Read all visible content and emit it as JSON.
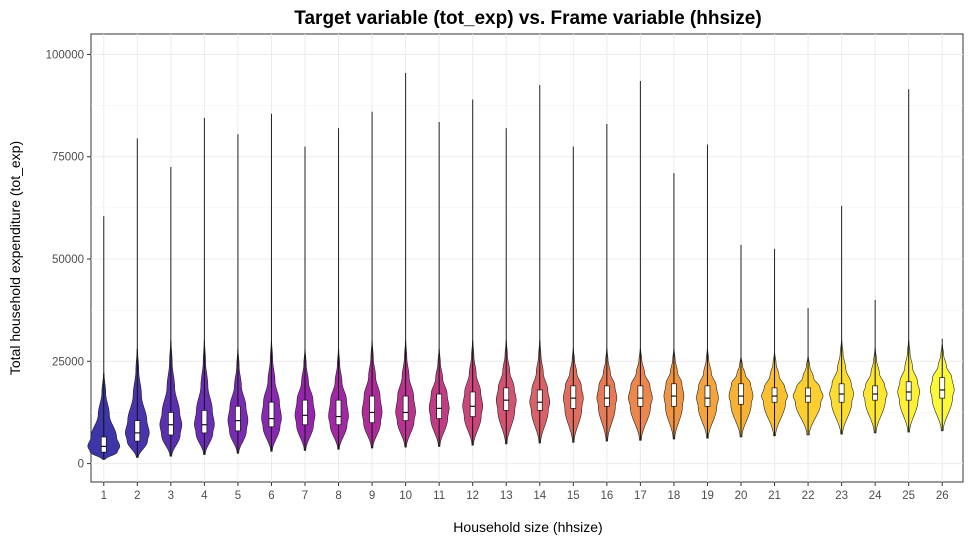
{
  "chart_data": {
    "type": "violin",
    "title": "Target variable (tot_exp) vs. Frame variable (hhsize)",
    "xlabel": "Household size (hhsize)",
    "ylabel": "Total household expenditure (tot_exp)",
    "ylim": [
      -4500,
      105000
    ],
    "y_ticks": [
      0,
      25000,
      50000,
      75000,
      100000
    ],
    "y_tick_labels": [
      "0",
      "25000",
      "50000",
      "75000",
      "100000"
    ],
    "categories": [
      "1",
      "2",
      "3",
      "4",
      "5",
      "6",
      "7",
      "8",
      "9",
      "10",
      "11",
      "12",
      "13",
      "14",
      "15",
      "16",
      "17",
      "18",
      "19",
      "20",
      "21",
      "22",
      "23",
      "24",
      "25",
      "26"
    ],
    "colors": [
      "#3d36a8",
      "#4a33ad",
      "#5a30b0",
      "#6a2db3",
      "#792bb3",
      "#8828b0",
      "#9526ac",
      "#a227a4",
      "#ae2b9b",
      "#b83290",
      "#c23c85",
      "#cb477b",
      "#d35472",
      "#da6168",
      "#e06d5e",
      "#e67a55",
      "#ec874c",
      "#f09544",
      "#f4a43c",
      "#f7b236",
      "#f9c132",
      "#fbcf30",
      "#fcdc30",
      "#fde631",
      "#fdf035",
      "#fcf83a"
    ],
    "whisker_min": [
      1000,
      1500,
      1800,
      2200,
      2500,
      3000,
      3200,
      3500,
      3800,
      4000,
      4200,
      4500,
      4800,
      5000,
      5200,
      5500,
      5700,
      6000,
      6200,
      6500,
      6800,
      7000,
      7200,
      7500,
      7700,
      8000
    ],
    "q1": [
      2800,
      5500,
      7000,
      7500,
      8000,
      9000,
      9500,
      9500,
      10000,
      10500,
      11000,
      11500,
      13000,
      13000,
      13500,
      14000,
      14000,
      14000,
      14000,
      14500,
      15000,
      15000,
      15000,
      15500,
      15500,
      16000
    ],
    "median": [
      4200,
      7500,
      9500,
      9500,
      10500,
      11000,
      11800,
      11500,
      12500,
      12500,
      13500,
      14000,
      15500,
      15000,
      16000,
      16000,
      16000,
      16500,
      16000,
      16500,
      16500,
      16500,
      17000,
      17000,
      17500,
      18000
    ],
    "q3": [
      6500,
      10500,
      12500,
      13000,
      14000,
      15000,
      15500,
      15500,
      16500,
      16500,
      17000,
      17500,
      18500,
      18000,
      19000,
      19000,
      19000,
      19500,
      19000,
      19500,
      18500,
      18500,
      19500,
      19000,
      20000,
      21000
    ],
    "max": [
      60500,
      79500,
      72500,
      84500,
      80500,
      85500,
      77500,
      82000,
      86000,
      95500,
      83500,
      89000,
      82000,
      92500,
      77500,
      83000,
      93500,
      71000,
      78000,
      53500,
      52500,
      38000,
      63000,
      40000,
      91500,
      30500
    ],
    "violin_upper": [
      22000,
      28000,
      30000,
      30000,
      28000,
      30000,
      28000,
      28000,
      30000,
      30000,
      28000,
      30000,
      30000,
      30000,
      28000,
      28000,
      28000,
      28000,
      28000,
      26000,
      27000,
      26000,
      30000,
      28000,
      30000,
      29000
    ],
    "violin_max_halfwidth": [
      16,
      12,
      11,
      10,
      10,
      10,
      10,
      10,
      10,
      10,
      10,
      10,
      10,
      10,
      10,
      10,
      12,
      10,
      11,
      12,
      13,
      15,
      12,
      12,
      11,
      12
    ]
  }
}
